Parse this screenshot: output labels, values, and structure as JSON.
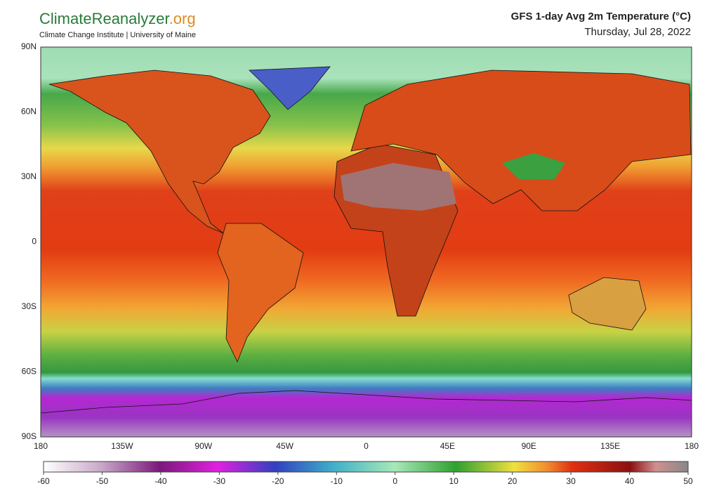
{
  "header": {
    "brand_main": "ClimateReanalyzer",
    "brand_suffix": ".org",
    "brand_subtitle": "Climate Change Institute | University of Maine",
    "title": "GFS 1-day Avg 2m Temperature (°C)",
    "date": "Thursday, Jul 28, 2022"
  },
  "map": {
    "lat_labels": [
      "90N",
      "60N",
      "30N",
      "0",
      "30S",
      "60S",
      "90S"
    ],
    "lon_labels": [
      "180",
      "135W",
      "90W",
      "45W",
      "0",
      "45E",
      "90E",
      "135E",
      "180"
    ]
  },
  "colorbar": {
    "range": [
      -60,
      50
    ],
    "ticks": [
      -60,
      -50,
      -40,
      -30,
      -20,
      -10,
      0,
      10,
      20,
      30,
      40,
      50
    ]
  }
}
